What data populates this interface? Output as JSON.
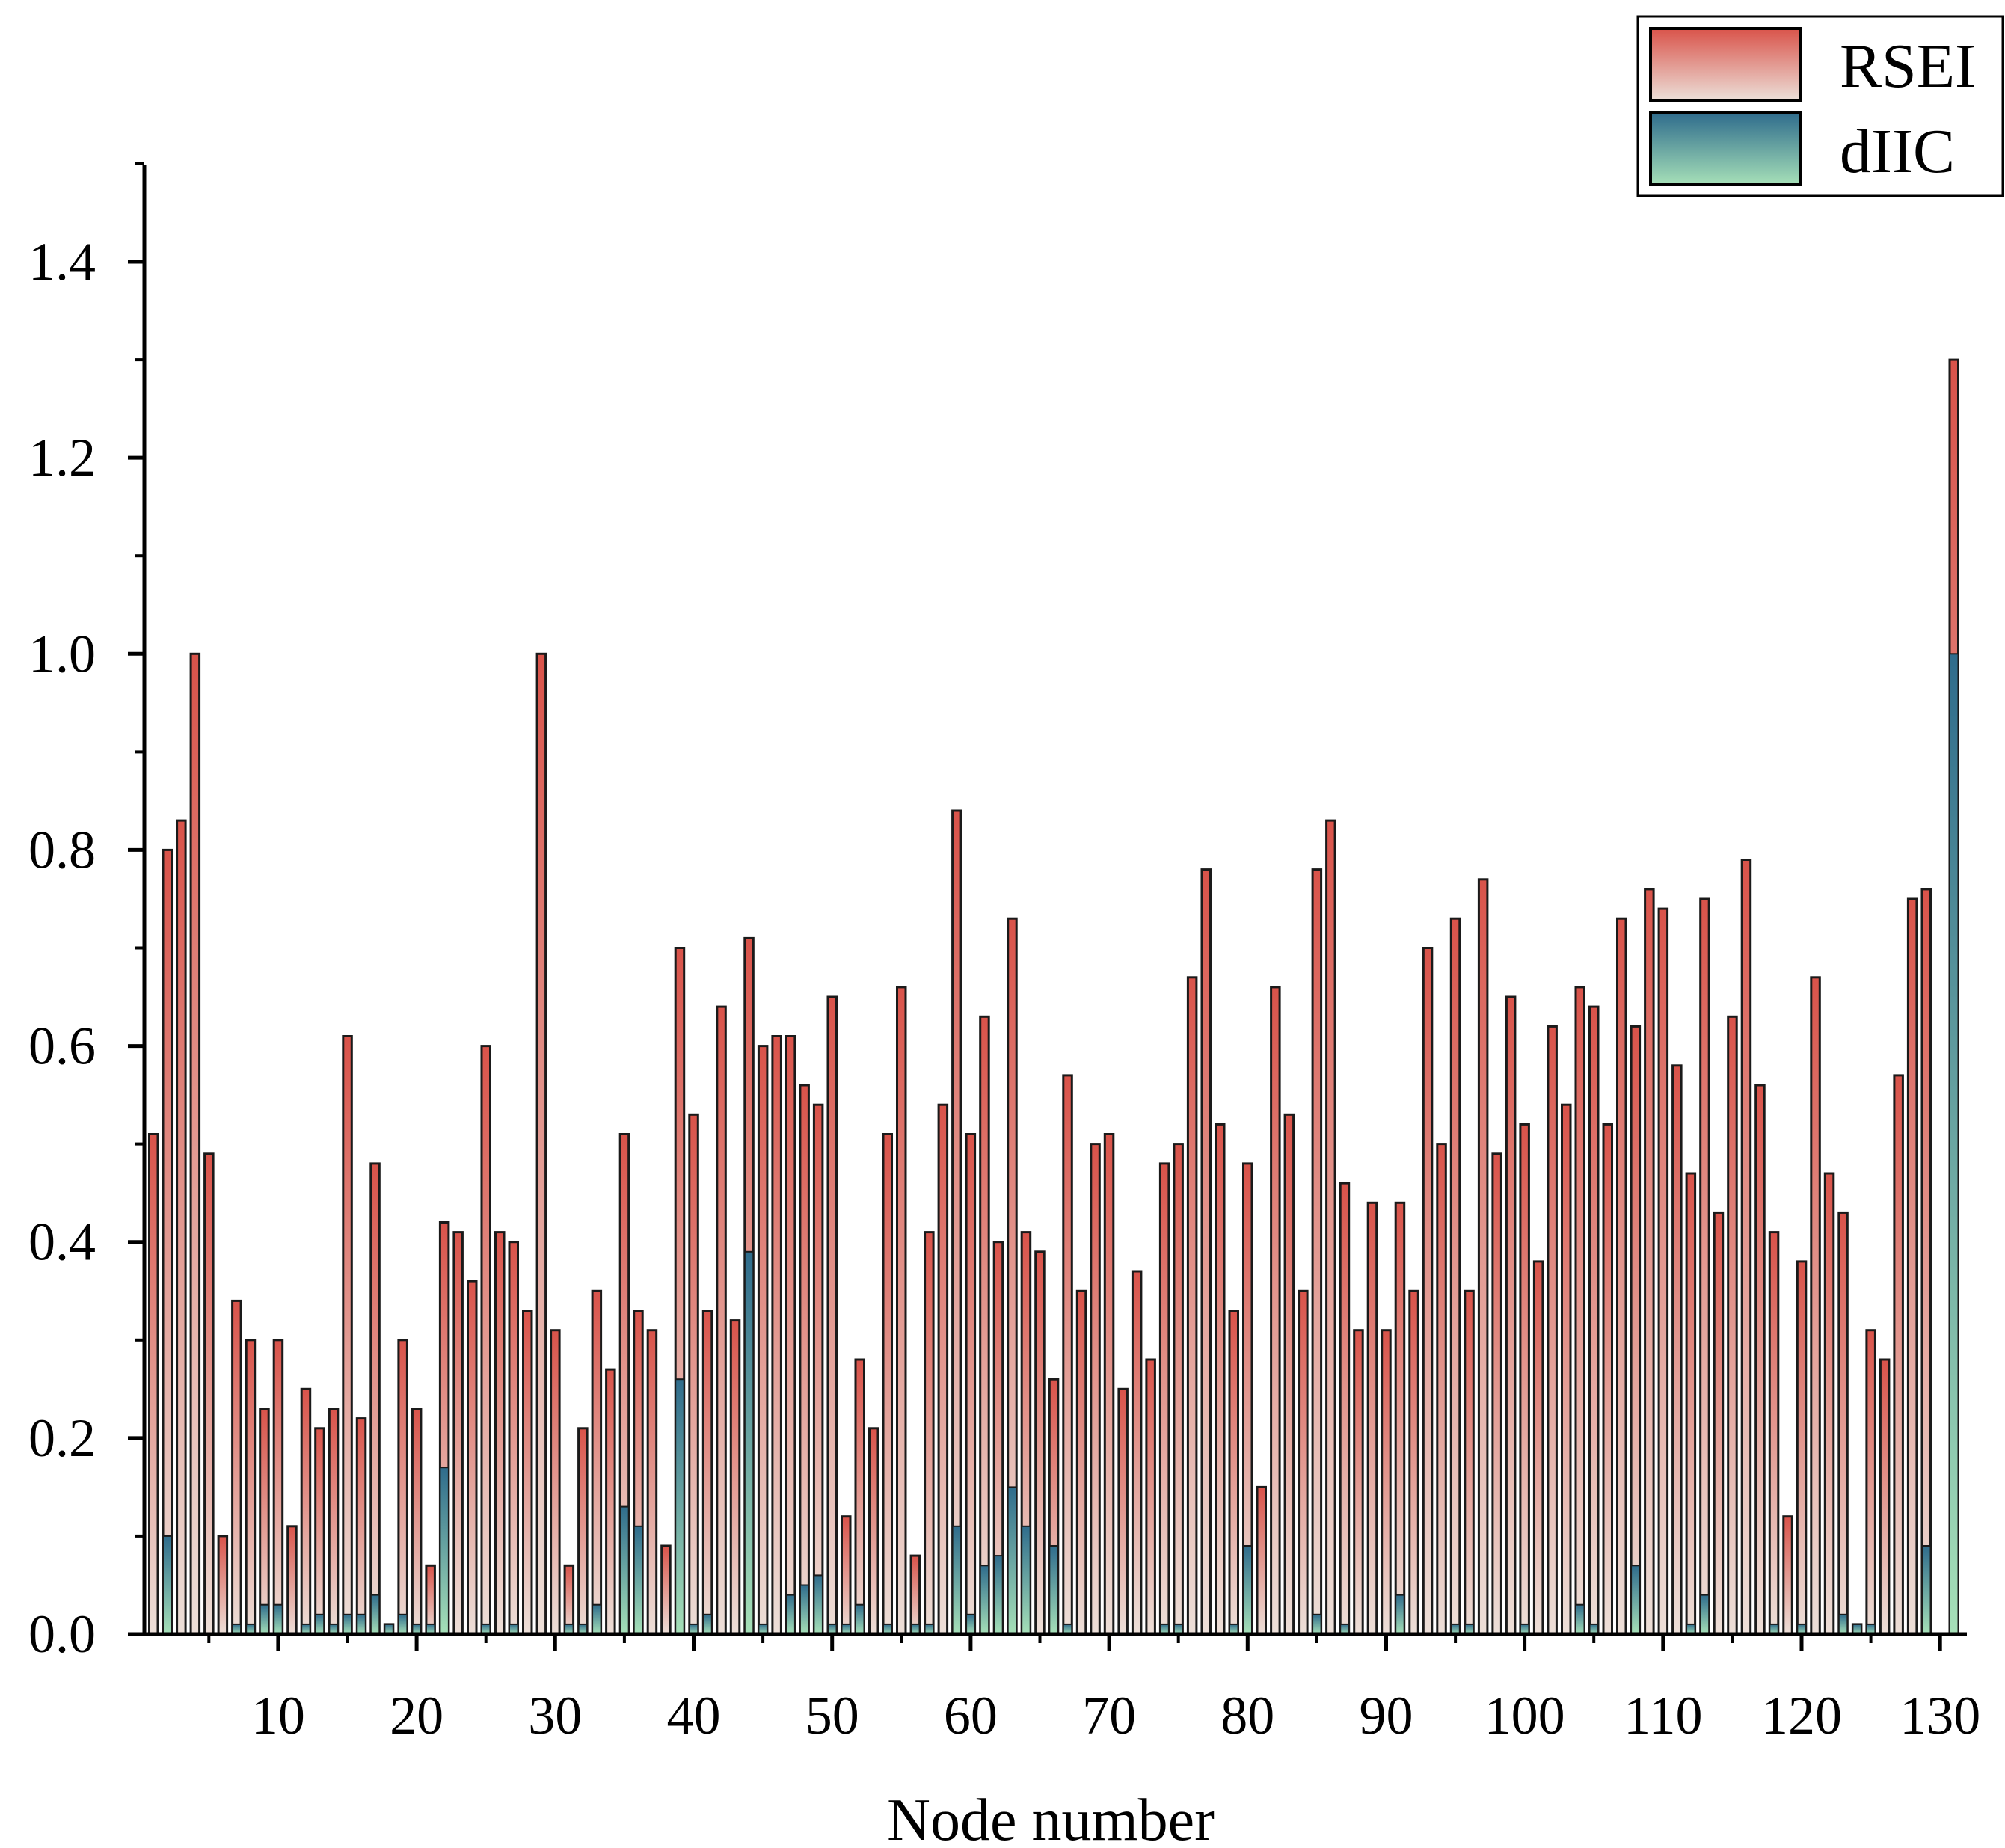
{
  "chart_data": {
    "type": "bar",
    "title": "",
    "xlabel": "Node number",
    "ylabel": "",
    "ylim": [
      0,
      1.5
    ],
    "yticks": [
      0.0,
      0.2,
      0.4,
      0.6,
      0.8,
      1.0,
      1.2,
      1.4
    ],
    "ytick_labels": [
      "0.0",
      "0.2",
      "0.4",
      "0.6",
      "0.8",
      "1.0",
      "1.2",
      "1.4"
    ],
    "xticks": [
      10,
      20,
      30,
      40,
      50,
      60,
      70,
      80,
      90,
      100,
      110,
      120,
      130
    ],
    "xtick_labels": [
      "10",
      "20",
      "30",
      "40",
      "50",
      "60",
      "70",
      "80",
      "90",
      "100",
      "110",
      "120",
      "130"
    ],
    "xlim": [
      1,
      131
    ],
    "legend_position": "top-right",
    "series": [
      {
        "name": "RSEI",
        "color_top": "#d9534a",
        "color_bottom": "#ecdfd8",
        "values": [
          0.51,
          0.8,
          0.83,
          1.0,
          0.49,
          0.1,
          0.34,
          0.3,
          0.23,
          0.3,
          0.11,
          0.25,
          0.21,
          0.23,
          0.61,
          0.22,
          0.48,
          0.01,
          0.3,
          0.23,
          0.07,
          0.42,
          0.41,
          0.36,
          0.6,
          0.41,
          0.4,
          0.33,
          1.0,
          0.31,
          0.07,
          0.21,
          0.35,
          0.27,
          0.51,
          0.33,
          0.31,
          0.09,
          0.7,
          0.53,
          0.33,
          0.64,
          0.32,
          0.71,
          0.6,
          0.61,
          0.61,
          0.56,
          0.54,
          0.65,
          0.12,
          0.28,
          0.21,
          0.51,
          0.66,
          0.08,
          0.41,
          0.54,
          0.84,
          0.51,
          0.63,
          0.4,
          0.73,
          0.41,
          0.39,
          0.26,
          0.57,
          0.35,
          0.5,
          0.51,
          0.25,
          0.37,
          0.28,
          0.48,
          0.5,
          0.67,
          0.78,
          0.52,
          0.33,
          0.48,
          0.15,
          0.66,
          0.53,
          0.35,
          0.78,
          0.83,
          0.46,
          0.31,
          0.44,
          0.31,
          0.44,
          0.35,
          0.7,
          0.5,
          0.73,
          0.35,
          0.77,
          0.49,
          0.65,
          0.52,
          0.38,
          0.62,
          0.54,
          0.66,
          0.64,
          0.52,
          0.73,
          0.62,
          0.76,
          0.74,
          0.58,
          0.47,
          0.75,
          0.43,
          0.63,
          0.79,
          0.56,
          0.41,
          0.12,
          0.38,
          0.67,
          0.47,
          0.43,
          0.01,
          0.31,
          0.28,
          0.57,
          0.75,
          0.76,
          0.0,
          1.3
        ]
      },
      {
        "name": "dIIC",
        "color_top": "#2f6c8c",
        "color_bottom": "#a6e0b8",
        "values": [
          0.0,
          0.1,
          0.0,
          0.0,
          0.0,
          0.0,
          0.01,
          0.01,
          0.03,
          0.03,
          0.0,
          0.01,
          0.02,
          0.01,
          0.02,
          0.02,
          0.04,
          0.01,
          0.02,
          0.01,
          0.01,
          0.17,
          0.0,
          0.0,
          0.01,
          0.0,
          0.01,
          0.0,
          0.0,
          0.0,
          0.01,
          0.01,
          0.03,
          0.0,
          0.13,
          0.11,
          0.0,
          0.0,
          0.26,
          0.01,
          0.02,
          0.0,
          0.0,
          0.39,
          0.01,
          0.0,
          0.04,
          0.05,
          0.06,
          0.01,
          0.01,
          0.03,
          0.0,
          0.01,
          0.0,
          0.01,
          0.01,
          0.0,
          0.11,
          0.02,
          0.07,
          0.08,
          0.15,
          0.11,
          0.0,
          0.09,
          0.01,
          0.0,
          0.0,
          0.0,
          0.0,
          0.0,
          0.0,
          0.01,
          0.01,
          0.0,
          0.0,
          0.0,
          0.01,
          0.09,
          0.0,
          0.0,
          0.0,
          0.0,
          0.02,
          0.0,
          0.01,
          0.0,
          0.0,
          0.0,
          0.04,
          0.0,
          0.0,
          0.0,
          0.01,
          0.01,
          0.0,
          0.0,
          0.0,
          0.01,
          0.0,
          0.0,
          0.0,
          0.03,
          0.01,
          0.0,
          0.0,
          0.07,
          0.0,
          0.0,
          0.0,
          0.01,
          0.04,
          0.0,
          0.0,
          0.0,
          0.0,
          0.01,
          0.0,
          0.01,
          0.0,
          0.0,
          0.02,
          0.01,
          0.01,
          0.0,
          0.0,
          0.0,
          0.09,
          0.0,
          1.0
        ]
      }
    ]
  }
}
